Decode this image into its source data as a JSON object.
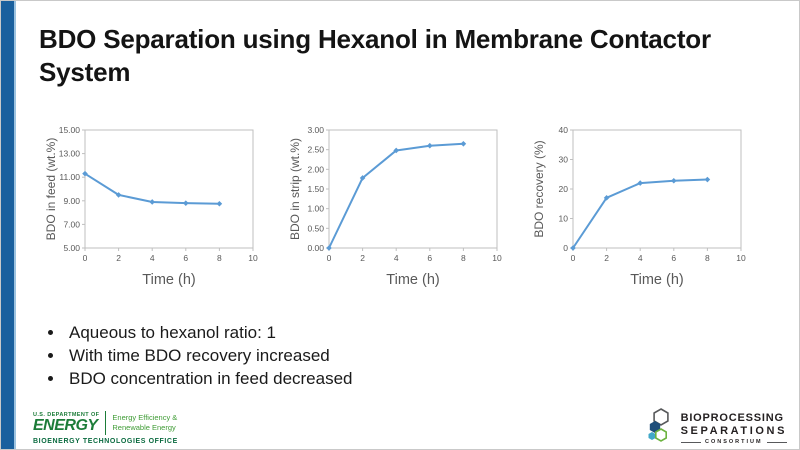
{
  "slide": {
    "title": "BDO Separation using Hexanol in Membrane Contactor System",
    "accent_bar_color": "#1a609e",
    "background_color": "#ffffff"
  },
  "bullets": [
    "Aqueous to hexanol ratio: 1",
    "With time BDO recovery increased",
    "BDO concentration in feed decreased"
  ],
  "chart_data": [
    {
      "type": "line",
      "x": [
        0,
        2,
        4,
        6,
        8
      ],
      "values": [
        11.3,
        9.5,
        8.9,
        8.8,
        8.75
      ],
      "xlabel": "Time (h)",
      "ylabel": "BDO in feed (wt.%)",
      "xlim": [
        0,
        10
      ],
      "ylim": [
        5,
        15
      ],
      "xticks": [
        0,
        2,
        4,
        6,
        8,
        10
      ],
      "yticks": [
        5,
        7,
        9,
        11,
        13,
        15
      ],
      "ytick_labels": [
        "5.00",
        "7.00",
        "9.00",
        "11.00",
        "13.00",
        "15.00"
      ],
      "grid": false,
      "legend": "none",
      "line_color": "#5b9bd5",
      "marker": "diamond"
    },
    {
      "type": "line",
      "x": [
        0,
        2,
        4,
        6,
        8
      ],
      "values": [
        0.0,
        1.78,
        2.48,
        2.6,
        2.65
      ],
      "xlabel": "Time (h)",
      "ylabel": "BDO in strip (wt.%)",
      "xlim": [
        0,
        10
      ],
      "ylim": [
        0,
        3
      ],
      "xticks": [
        0,
        2,
        4,
        6,
        8,
        10
      ],
      "yticks": [
        0,
        0.5,
        1,
        1.5,
        2,
        2.5,
        3
      ],
      "ytick_labels": [
        "0.00",
        "0.50",
        "1.00",
        "1.50",
        "2.00",
        "2.50",
        "3.00"
      ],
      "grid": false,
      "legend": "none",
      "line_color": "#5b9bd5",
      "marker": "diamond"
    },
    {
      "type": "line",
      "x": [
        0,
        2,
        4,
        6,
        8
      ],
      "values": [
        0,
        17,
        22,
        22.8,
        23.2
      ],
      "xlabel": "Time (h)",
      "ylabel": "BDO recovery (%)",
      "xlim": [
        0,
        10
      ],
      "ylim": [
        0,
        40
      ],
      "xticks": [
        0,
        2,
        4,
        6,
        8,
        10
      ],
      "yticks": [
        0,
        10,
        20,
        30,
        40
      ],
      "ytick_labels": [
        "0",
        "10",
        "20",
        "30",
        "40"
      ],
      "grid": false,
      "legend": "none",
      "line_color": "#5b9bd5",
      "marker": "diamond"
    }
  ],
  "chart_style": {
    "axis_text_color": "#595959",
    "plot_border_color": "#bfbfbf",
    "line_color": "#5b9bd5"
  },
  "footer": {
    "doe": {
      "dept": "U.S. DEPARTMENT OF",
      "energy": "ENERGY",
      "eere_line1": "Energy Efficiency &",
      "eere_line2": "Renewable Energy",
      "office": "BIOENERGY TECHNOLOGIES OFFICE"
    },
    "consortium": {
      "line1": "BIOPROCESSING",
      "line2": "SEPARATIONS",
      "line3": "CONSORTIUM",
      "hex_colors": {
        "outline": "#58595b",
        "navy": "#1f4e79",
        "teal": "#41a8c8",
        "green": "#6cb33f"
      }
    }
  }
}
